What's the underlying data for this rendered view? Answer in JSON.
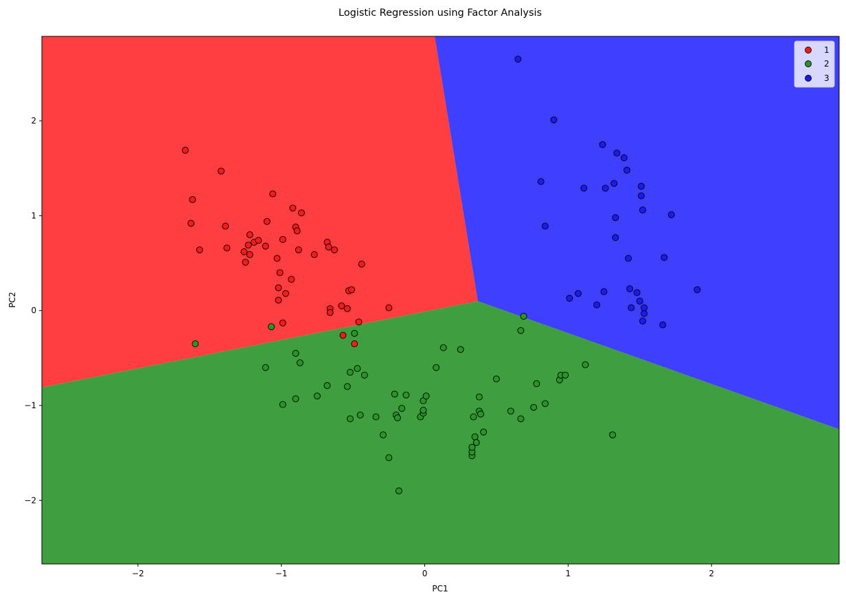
{
  "chart_data": {
    "type": "scatter",
    "title": "Logistic Regression using Factor Analysis",
    "xlabel": "PC1",
    "ylabel": "PC2",
    "xlim": [
      -2.67,
      2.89
    ],
    "ylim": [
      -2.67,
      2.89
    ],
    "xticks": [
      -2,
      -1,
      0,
      1,
      2
    ],
    "yticks": [
      -2,
      -1,
      0,
      1,
      2
    ],
    "tick_labels_x": [
      "−2",
      "−1",
      "0",
      "1",
      "2"
    ],
    "tick_labels_y": [
      "−2",
      "−1",
      "0",
      "1",
      "2"
    ],
    "grid": false,
    "legend": {
      "placement": "top-right",
      "entries": [
        "1",
        "2",
        "3"
      ]
    },
    "regions": [
      {
        "class": "1",
        "color": "#ff3f3f",
        "vertices": [
          [
            -2.67,
            2.89
          ],
          [
            0.07,
            2.89
          ],
          [
            0.37,
            0.1
          ],
          [
            -2.67,
            -0.81
          ]
        ]
      },
      {
        "class": "2",
        "color": "#3f9f3f",
        "vertices": [
          [
            -2.67,
            -0.81
          ],
          [
            0.37,
            0.1
          ],
          [
            2.89,
            -1.25
          ],
          [
            2.89,
            -2.67
          ],
          [
            -2.67,
            -2.67
          ]
        ]
      },
      {
        "class": "3",
        "color": "#3f3fff",
        "vertices": [
          [
            0.07,
            2.89
          ],
          [
            2.89,
            2.89
          ],
          [
            2.89,
            -1.25
          ],
          [
            0.37,
            0.1
          ]
        ]
      }
    ],
    "series": [
      {
        "name": "1",
        "color": "#ff1a1a",
        "points": [
          [
            -1.67,
            1.69
          ],
          [
            -1.62,
            1.17
          ],
          [
            -1.63,
            0.92
          ],
          [
            -1.57,
            0.64
          ],
          [
            -1.42,
            1.47
          ],
          [
            -1.39,
            0.89
          ],
          [
            -1.38,
            0.66
          ],
          [
            -1.26,
            0.62
          ],
          [
            -1.25,
            0.51
          ],
          [
            -1.23,
            0.69
          ],
          [
            -1.22,
            0.8
          ],
          [
            -1.22,
            0.59
          ],
          [
            -1.19,
            0.72
          ],
          [
            -1.16,
            0.74
          ],
          [
            -1.11,
            0.68
          ],
          [
            -1.1,
            0.94
          ],
          [
            -1.06,
            1.23
          ],
          [
            -1.03,
            0.55
          ],
          [
            -1.02,
            0.24
          ],
          [
            -1.02,
            0.11
          ],
          [
            -1.01,
            0.4
          ],
          [
            -0.99,
            -0.13
          ],
          [
            -0.99,
            0.75
          ],
          [
            -0.97,
            0.18
          ],
          [
            -0.93,
            0.33
          ],
          [
            -0.92,
            1.08
          ],
          [
            -0.9,
            0.88
          ],
          [
            -0.89,
            0.84
          ],
          [
            -0.88,
            0.64
          ],
          [
            -0.86,
            1.03
          ],
          [
            -0.77,
            0.59
          ],
          [
            -0.68,
            0.72
          ],
          [
            -0.67,
            0.67
          ],
          [
            -0.66,
            0.02
          ],
          [
            -0.66,
            -0.02
          ],
          [
            -0.63,
            0.64
          ],
          [
            -0.58,
            0.05
          ],
          [
            -0.57,
            -0.26
          ],
          [
            -0.54,
            0.02
          ],
          [
            -0.53,
            0.21
          ],
          [
            -0.51,
            0.22
          ],
          [
            -0.49,
            -0.35
          ],
          [
            -0.46,
            -0.12
          ],
          [
            -0.44,
            0.49
          ],
          [
            -0.25,
            0.03
          ]
        ]
      },
      {
        "name": "2",
        "color": "#279527",
        "points": [
          [
            -1.6,
            -0.35
          ],
          [
            -1.11,
            -0.6
          ],
          [
            -1.07,
            -0.17
          ],
          [
            -0.99,
            -0.99
          ],
          [
            -0.9,
            -0.93
          ],
          [
            -0.9,
            -0.45
          ],
          [
            -0.87,
            -0.55
          ],
          [
            -0.75,
            -0.9
          ],
          [
            -0.68,
            -0.79
          ],
          [
            -0.54,
            -0.8
          ],
          [
            -0.52,
            -0.65
          ],
          [
            -0.52,
            -1.14
          ],
          [
            -0.49,
            -0.24
          ],
          [
            -0.47,
            -0.61
          ],
          [
            -0.45,
            -1.1
          ],
          [
            -0.42,
            -0.68
          ],
          [
            -0.34,
            -1.12
          ],
          [
            -0.29,
            -1.31
          ],
          [
            -0.25,
            -1.55
          ],
          [
            -0.21,
            -0.88
          ],
          [
            -0.2,
            -1.1
          ],
          [
            -0.19,
            -1.13
          ],
          [
            -0.18,
            -1.9
          ],
          [
            -0.16,
            -1.03
          ],
          [
            -0.13,
            -0.89
          ],
          [
            -0.03,
            -1.12
          ],
          [
            -0.01,
            -0.95
          ],
          [
            -0.01,
            -1.08
          ],
          [
            -0.01,
            -1.05
          ],
          [
            0.01,
            -0.9
          ],
          [
            0.08,
            -0.6
          ],
          [
            0.13,
            -0.39
          ],
          [
            0.25,
            -0.41
          ],
          [
            0.33,
            -1.53
          ],
          [
            0.33,
            -1.49
          ],
          [
            0.33,
            -1.44
          ],
          [
            0.34,
            -1.12
          ],
          [
            0.35,
            -1.33
          ],
          [
            0.36,
            -1.39
          ],
          [
            0.38,
            -0.91
          ],
          [
            0.38,
            -1.06
          ],
          [
            0.39,
            -1.09
          ],
          [
            0.41,
            -1.28
          ],
          [
            0.5,
            -0.72
          ],
          [
            0.6,
            -1.06
          ],
          [
            0.67,
            -1.14
          ],
          [
            0.67,
            -0.21
          ],
          [
            0.69,
            -0.06
          ],
          [
            0.76,
            -1.02
          ],
          [
            0.78,
            -0.77
          ],
          [
            0.84,
            -0.98
          ],
          [
            0.94,
            -0.73
          ],
          [
            0.95,
            -0.68
          ],
          [
            0.98,
            -0.68
          ],
          [
            1.12,
            -0.57
          ],
          [
            1.31,
            -1.31
          ]
        ]
      },
      {
        "name": "3",
        "color": "#1a1aff",
        "points": [
          [
            0.65,
            2.65
          ],
          [
            0.81,
            1.36
          ],
          [
            0.84,
            0.89
          ],
          [
            0.9,
            2.01
          ],
          [
            1.01,
            0.13
          ],
          [
            1.07,
            0.18
          ],
          [
            1.11,
            1.29
          ],
          [
            1.2,
            0.06
          ],
          [
            1.24,
            1.75
          ],
          [
            1.25,
            0.2
          ],
          [
            1.26,
            1.29
          ],
          [
            1.32,
            1.34
          ],
          [
            1.33,
            0.98
          ],
          [
            1.33,
            0.77
          ],
          [
            1.34,
            1.66
          ],
          [
            1.39,
            1.61
          ],
          [
            1.41,
            1.48
          ],
          [
            1.42,
            0.55
          ],
          [
            1.43,
            0.23
          ],
          [
            1.44,
            0.03
          ],
          [
            1.48,
            0.19
          ],
          [
            1.5,
            0.1
          ],
          [
            1.51,
            1.31
          ],
          [
            1.51,
            1.21
          ],
          [
            1.52,
            -0.11
          ],
          [
            1.52,
            1.06
          ],
          [
            1.53,
            -0.03
          ],
          [
            1.53,
            0.03
          ],
          [
            1.66,
            -0.15
          ],
          [
            1.67,
            0.56
          ],
          [
            1.72,
            1.01
          ],
          [
            1.9,
            0.22
          ]
        ]
      }
    ]
  }
}
